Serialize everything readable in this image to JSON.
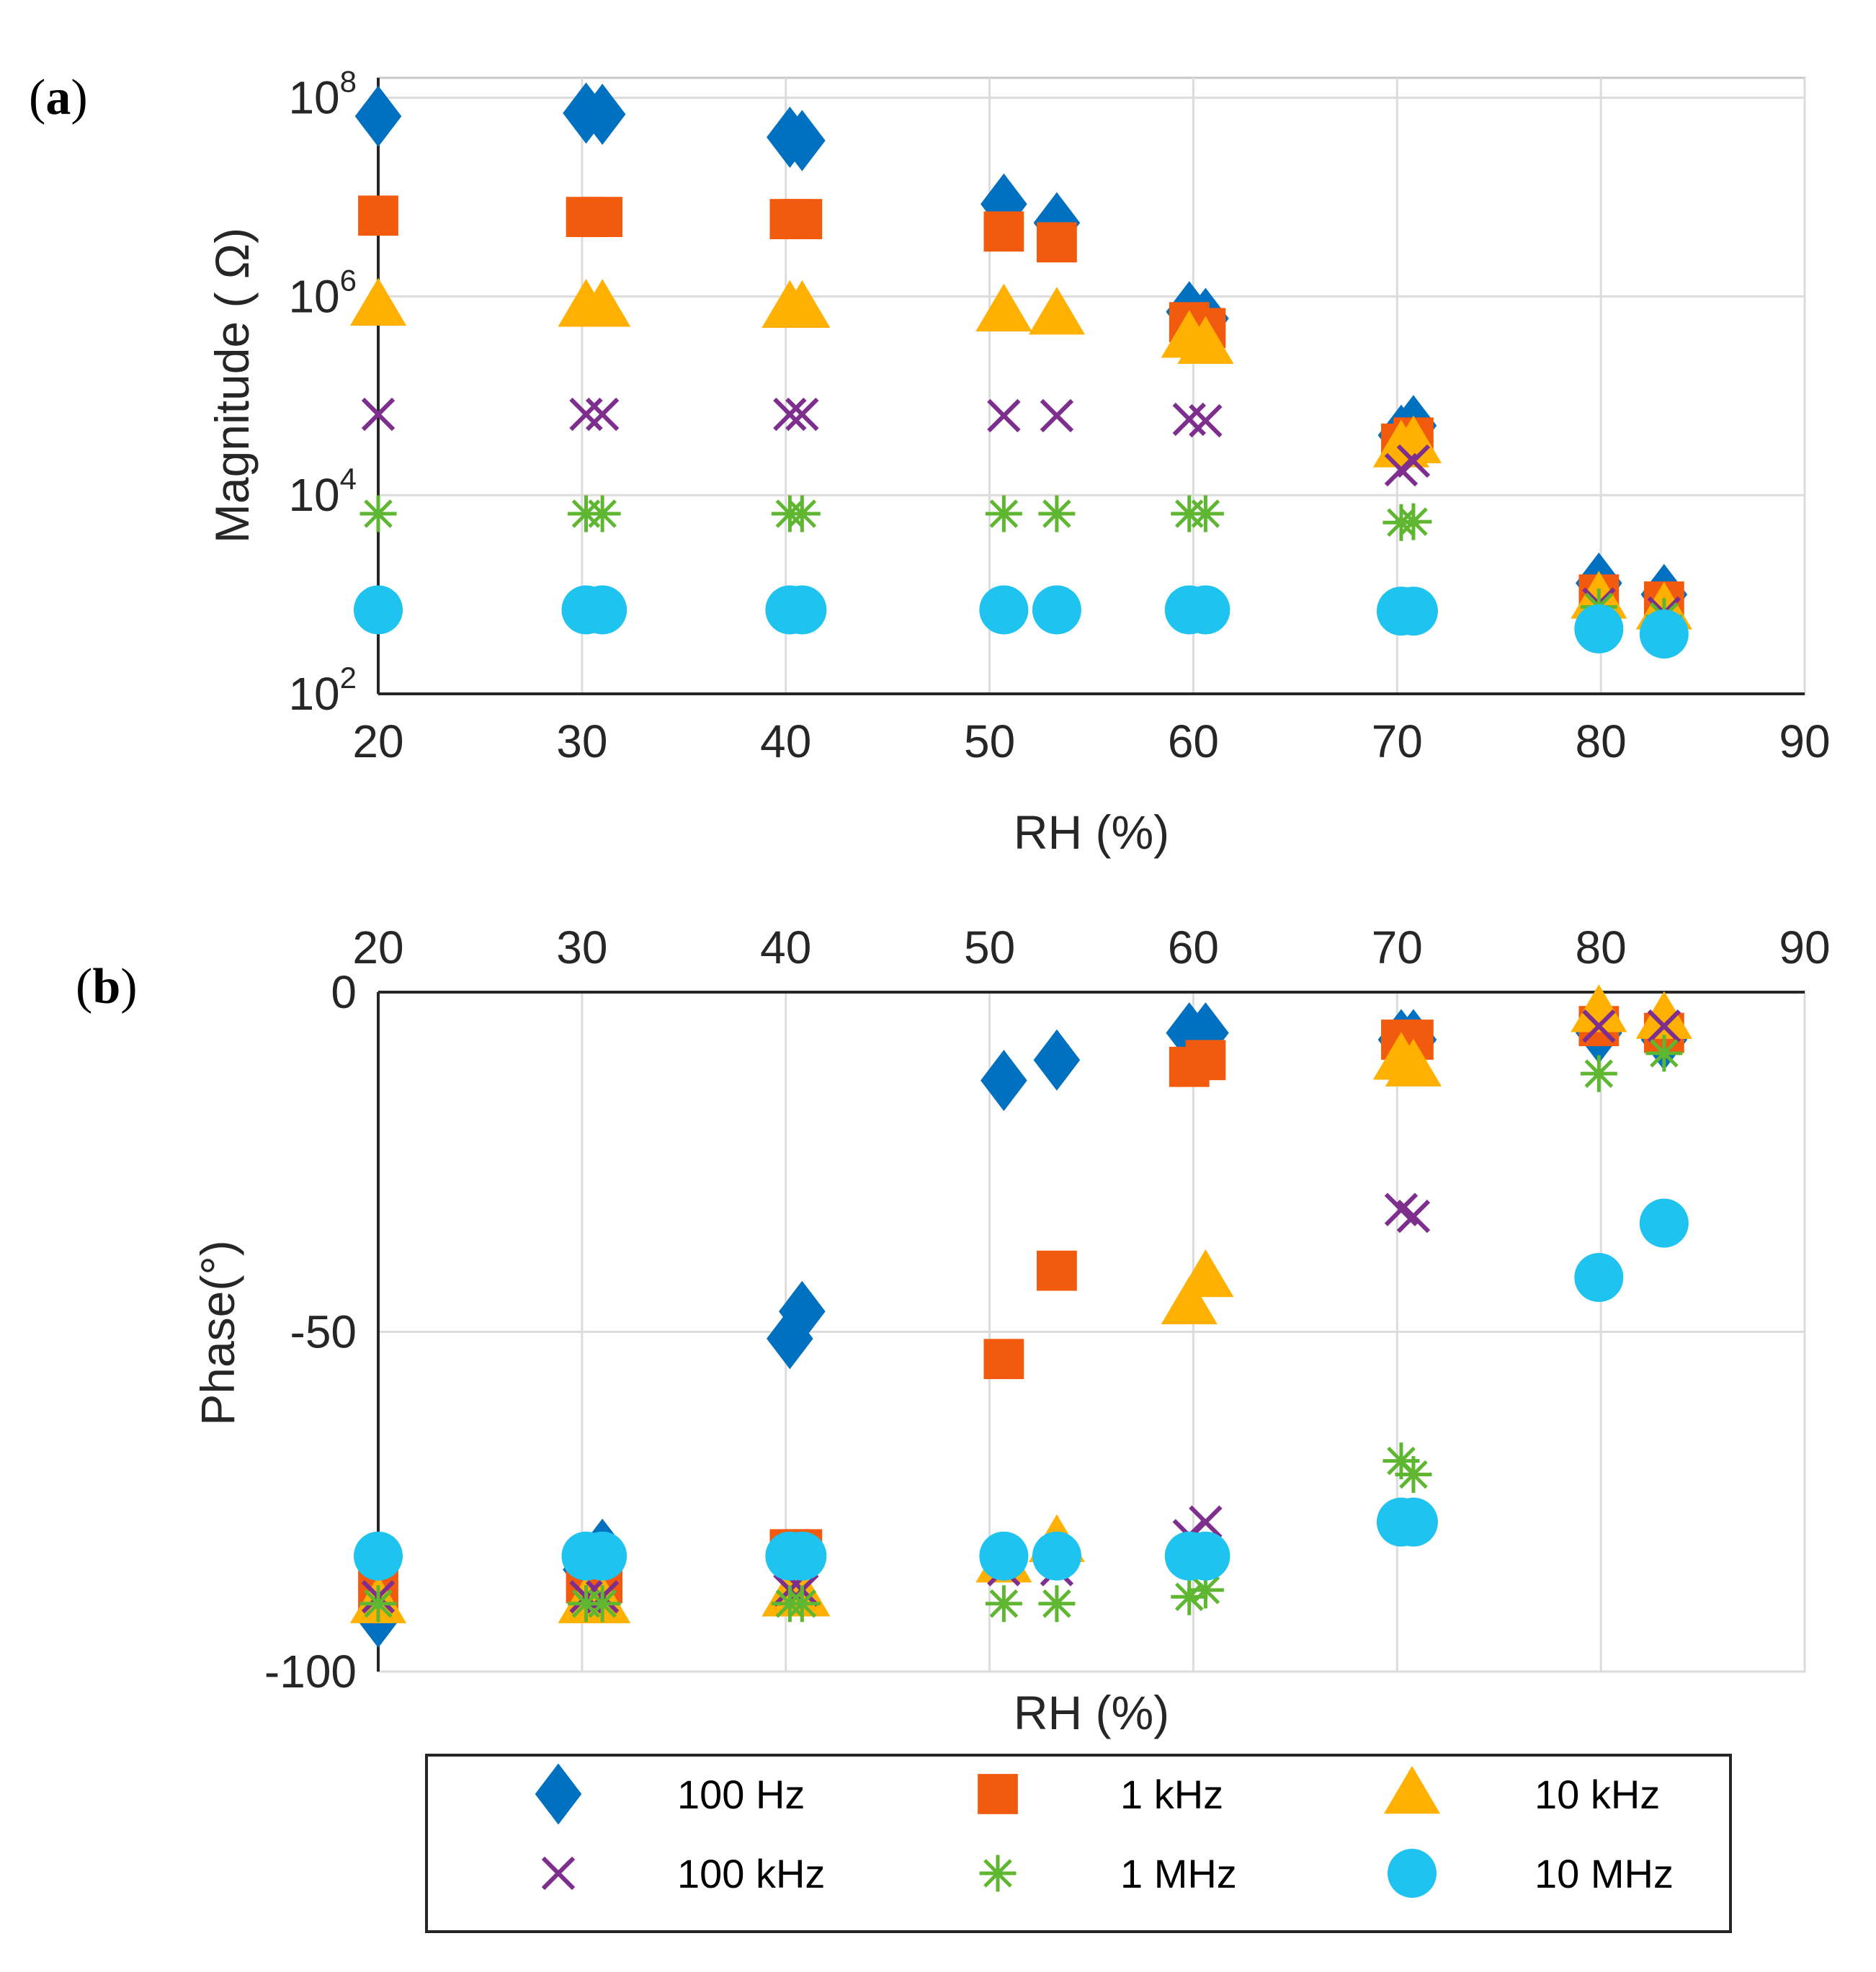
{
  "panels": {
    "a": {
      "label_open": "(",
      "label_letter": "a",
      "label_close": ")"
    },
    "b": {
      "label_open": "(",
      "label_letter": "b",
      "label_close": ")"
    }
  },
  "colors": {
    "100 Hz": "#0070c0",
    "1 kHz": "#f25a0e",
    "10 kHz": "#ffb000",
    "100 kHz": "#7e2f8e",
    "1 MHz": "#5fb731",
    "10 MHz": "#1ec3f0"
  },
  "markers": {
    "100 Hz": "diamond",
    "1 kHz": "square",
    "10 kHz": "triangle",
    "100 kHz": "x",
    "1 MHz": "asterisk",
    "10 MHz": "circle"
  },
  "legend": {
    "entries": [
      "100 Hz",
      "1 kHz",
      "10 kHz",
      "100 kHz",
      "1 MHz",
      "10 MHz"
    ],
    "placement": "bottom"
  },
  "chart_data": [
    {
      "type": "scatter",
      "panel": "a",
      "xlabel": "RH (%)",
      "ylabel": "Magnitude ( Ω)",
      "xlim": [
        20,
        90
      ],
      "ylim_log10": [
        2,
        8.2
      ],
      "yscale": "log",
      "xticks": [
        20,
        30,
        40,
        50,
        60,
        70,
        80,
        90
      ],
      "yticks": [
        {
          "base": "10",
          "exp": "2",
          "value": 100
        },
        {
          "base": "10",
          "exp": "4",
          "value": 10000
        },
        {
          "base": "10",
          "exp": "6",
          "value": 1000000
        },
        {
          "base": "10",
          "exp": "8",
          "value": 100000000
        }
      ],
      "grid": true,
      "x": [
        20,
        30.2,
        31,
        40.2,
        40.8,
        50.7,
        53.3,
        59.8,
        60.6,
        70.2,
        70.8,
        79.9,
        83.1
      ],
      "series": [
        {
          "name": "100 Hz",
          "values": [
            65000000,
            70000000,
            68000000,
            40000000,
            37000000,
            8500000,
            5500000,
            700000,
            600000,
            40000,
            50000,
            1300,
            1000
          ]
        },
        {
          "name": "1 kHz",
          "values": [
            6500000,
            6300000,
            6300000,
            6000000,
            6000000,
            4500000,
            3500000,
            550000,
            480000,
            33000,
            38000,
            1000,
            850
          ]
        },
        {
          "name": "10 kHz",
          "values": [
            800000,
            780000,
            780000,
            760000,
            760000,
            700000,
            650000,
            380000,
            330000,
            30000,
            33000,
            900,
            700
          ]
        },
        {
          "name": "100 kHz",
          "values": [
            65000,
            65000,
            65000,
            65000,
            65000,
            63000,
            63000,
            58000,
            56000,
            18000,
            22000,
            800,
            650
          ]
        },
        {
          "name": "1 MHz",
          "values": [
            6500,
            6500,
            6500,
            6500,
            6500,
            6500,
            6500,
            6500,
            6500,
            5300,
            5400,
            750,
            600
          ]
        },
        {
          "name": "10 MHz",
          "values": [
            700,
            700,
            700,
            700,
            700,
            700,
            700,
            700,
            700,
            680,
            680,
            450,
            400
          ]
        }
      ]
    },
    {
      "type": "scatter",
      "panel": "b",
      "xlabel": "RH (%)",
      "ylabel": "Phase(°)",
      "xlim": [
        20,
        90
      ],
      "ylim": [
        -100,
        0
      ],
      "xaxis_position": "top",
      "xticks": [
        20,
        30,
        40,
        50,
        60,
        70,
        80,
        90
      ],
      "yticks": [
        0,
        -50,
        -100
      ],
      "grid": true,
      "x": [
        20,
        30.2,
        31,
        40.2,
        40.8,
        50.7,
        53.3,
        59.8,
        60.6,
        70.2,
        70.8,
        79.9,
        83.1
      ],
      "series": [
        {
          "name": "100 Hz",
          "values": [
            -92,
            -85,
            -82,
            -51,
            -47,
            -13,
            -10,
            -6,
            -6,
            -7,
            -7,
            -6,
            -7
          ]
        },
        {
          "name": "1 kHz",
          "values": [
            -88,
            -87,
            -87,
            -82,
            -82,
            -54,
            -41,
            -11,
            -10,
            -7,
            -7,
            -5,
            -6
          ]
        },
        {
          "name": "10 kHz",
          "values": [
            -90,
            -90,
            -90,
            -89,
            -89,
            -84,
            -81,
            -46,
            -42,
            -10,
            -11,
            -3,
            -4
          ]
        },
        {
          "name": "100 kHz",
          "values": [
            -89,
            -89,
            -89,
            -88,
            -88,
            -85,
            -85,
            -80,
            -78,
            -32,
            -33,
            -5,
            -5
          ]
        },
        {
          "name": "1 MHz",
          "values": [
            -90,
            -90,
            -90,
            -90,
            -90,
            -90,
            -90,
            -89,
            -88,
            -69,
            -71,
            -12,
            -9
          ]
        },
        {
          "name": "10 MHz",
          "values": [
            -83,
            -83,
            -83,
            -83,
            -83,
            -83,
            -83,
            -83,
            -83,
            -78,
            -78,
            -42,
            -34
          ]
        }
      ]
    }
  ]
}
